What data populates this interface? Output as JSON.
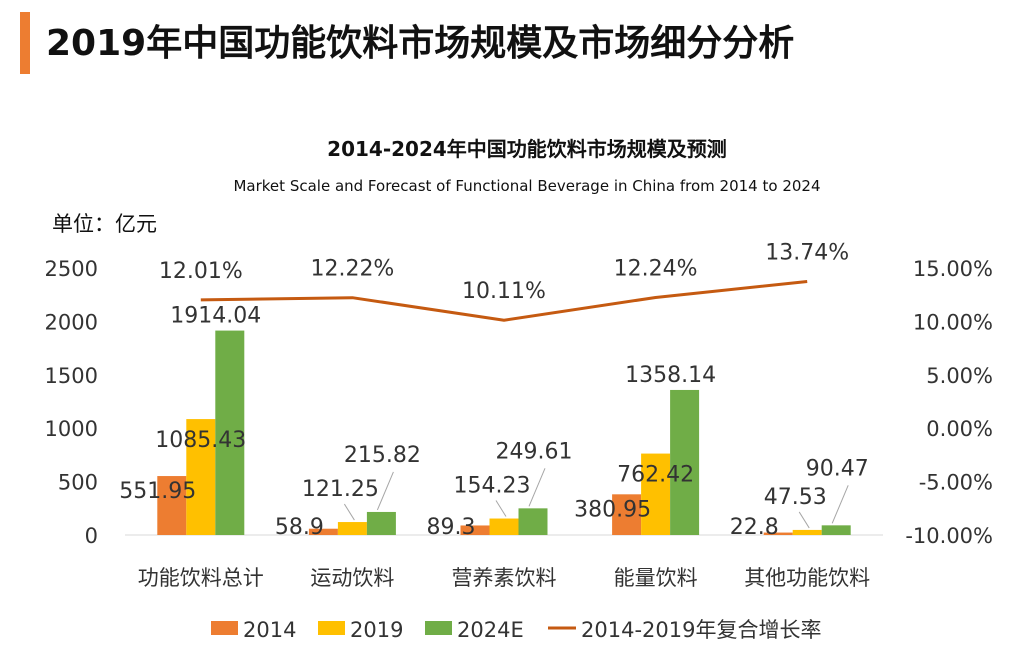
{
  "page": {
    "title": "2019年中国功能饮料市场规模及市场细分分析"
  },
  "chart_data": {
    "type": "bar",
    "title": "2014-2024年中国功能饮料市场规模及预测",
    "subtitle": "Market Scale and Forecast of Functional Beverage in China from 2014 to 2024",
    "unit_label": "单位：亿元",
    "categories": [
      "功能饮料总计",
      "运动饮料",
      "营养素饮料",
      "能量饮料",
      "其他功能饮料"
    ],
    "series": [
      {
        "name": "2014",
        "color": "#ED7D31",
        "values": [
          551.95,
          58.9,
          89.3,
          380.95,
          22.8
        ],
        "labels": [
          "551.95",
          "58.9",
          "89.3",
          "380.95",
          "22.8"
        ]
      },
      {
        "name": "2019",
        "color": "#FFC000",
        "values": [
          1085.43,
          121.25,
          154.23,
          762.42,
          47.53
        ],
        "labels": [
          "1085.43",
          "121.25",
          "154.23",
          "762.42",
          "47.53"
        ]
      },
      {
        "name": "2024E",
        "color": "#70AD47",
        "values": [
          1914.04,
          215.82,
          249.61,
          1358.14,
          90.47
        ],
        "labels": [
          "1914.04",
          "215.82",
          "249.61",
          "1358.14",
          "90.47"
        ]
      }
    ],
    "line_series": {
      "name": "2014-2019年复合增长率",
      "color": "#C55A11",
      "values": [
        12.01,
        12.22,
        10.11,
        12.24,
        13.74
      ],
      "labels": [
        "12.01%",
        "12.22%",
        "10.11%",
        "12.24%",
        "13.74%"
      ]
    },
    "left_axis": {
      "min": 0,
      "max": 2500,
      "ticks": [
        "2500",
        "2000",
        "1500",
        "1000",
        "500",
        "0"
      ]
    },
    "right_axis": {
      "min": -10,
      "max": 15,
      "ticks": [
        "15.00%",
        "10.00%",
        "5.00%",
        "0.00%",
        "-5.00%",
        "-10.00%"
      ]
    },
    "grid": false,
    "legend_position": "bottom"
  }
}
